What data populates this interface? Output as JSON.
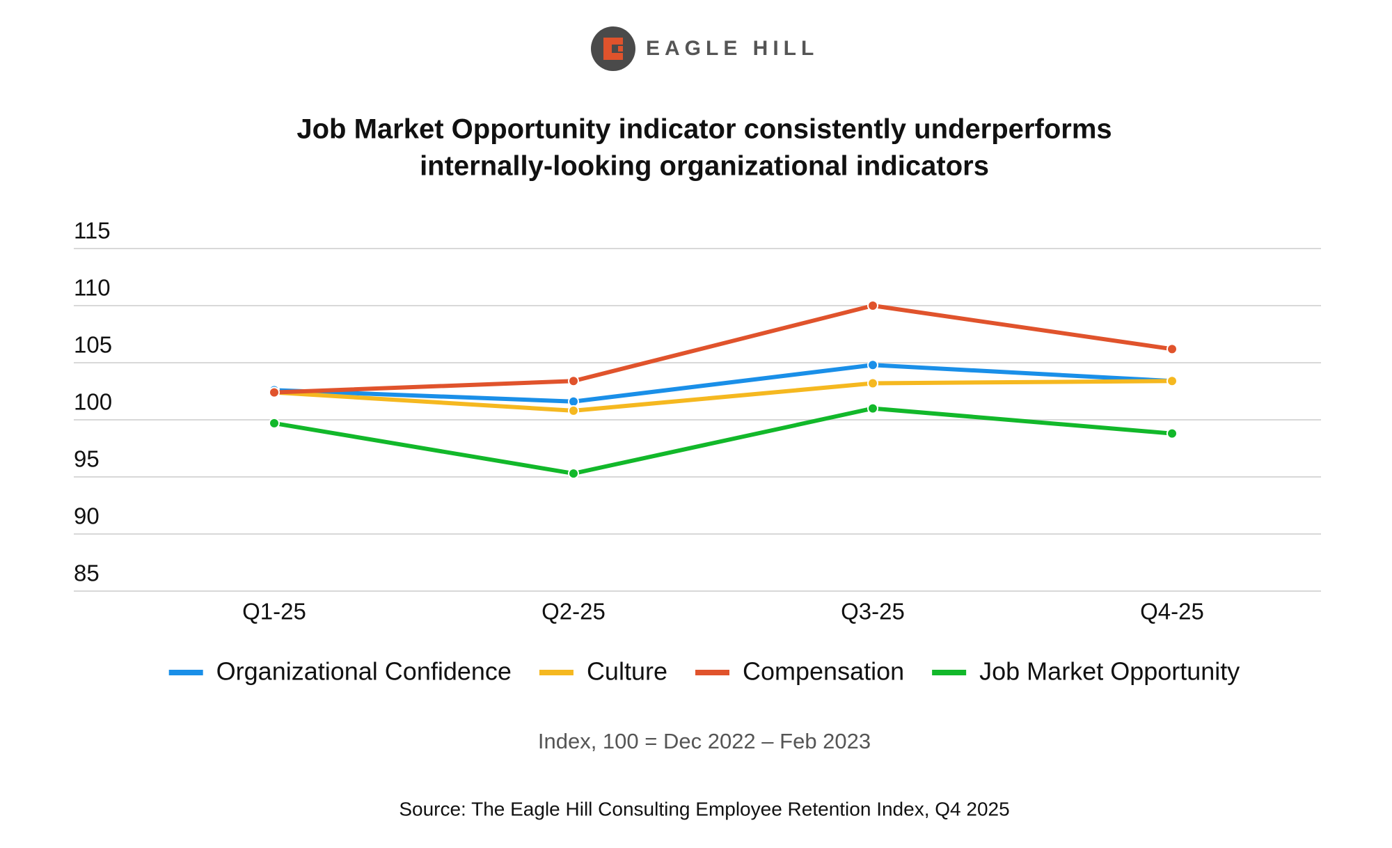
{
  "brand": "EAGLE HILL",
  "chart_data": {
    "type": "line",
    "title_lines": [
      "Job Market Opportunity indicator consistently underperforms",
      "internally-looking organizational indicators"
    ],
    "categories": [
      "Q1-25",
      "Q2-25",
      "Q3-25",
      "Q4-25"
    ],
    "series": [
      {
        "name": "Organizational Confidence",
        "color": "#1a8fe8",
        "values": [
          102.6,
          101.6,
          104.8,
          103.4
        ]
      },
      {
        "name": "Culture",
        "color": "#f5b820",
        "values": [
          102.4,
          100.8,
          103.2,
          103.4
        ]
      },
      {
        "name": "Compensation",
        "color": "#e0532c",
        "values": [
          102.4,
          103.4,
          110.0,
          106.2
        ]
      },
      {
        "name": "Job Market Opportunity",
        "color": "#12b82a",
        "values": [
          99.7,
          95.3,
          101.0,
          98.8
        ]
      }
    ],
    "ylim": [
      85,
      115
    ],
    "yticks": [
      85,
      90,
      95,
      100,
      105,
      110,
      115
    ],
    "grid": true,
    "subtitle": "Index, 100 = Dec 2022 – Feb 2023",
    "source": "Source: The Eagle Hill Consulting Employee Retention Index, Q4 2025"
  }
}
